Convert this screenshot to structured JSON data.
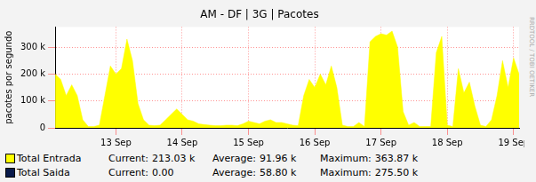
{
  "chart_data": {
    "type": "area",
    "title": "AM - DF | 3G | Pacotes",
    "y_label": "pacotes por segundo",
    "annotations": [
      "RRDTOOL / TOBI OETIKER"
    ],
    "categories": [
      null,
      null,
      null,
      null,
      null,
      null,
      null,
      null,
      null,
      null,
      null,
      "13 Sep",
      null,
      null,
      null,
      null,
      null,
      null,
      null,
      null,
      null,
      null,
      null,
      "14 Sep",
      null,
      null,
      null,
      null,
      null,
      null,
      null,
      null,
      null,
      null,
      null,
      "15 Sep",
      null,
      null,
      null,
      null,
      null,
      null,
      null,
      null,
      null,
      null,
      null,
      "16 Sep",
      null,
      null,
      null,
      null,
      null,
      null,
      null,
      null,
      null,
      null,
      null,
      "17 Sep",
      null,
      null,
      null,
      null,
      null,
      null,
      null,
      null,
      null,
      null,
      null,
      "18 Sep",
      null,
      null,
      null,
      null,
      null,
      null,
      null,
      null,
      null,
      null,
      null,
      "19 Sep",
      null
    ],
    "series": [
      {
        "name": "Total Entrada",
        "color": "#ffff00",
        "stats": [
          {
            "label": "Current:",
            "text": "213.03 k"
          },
          {
            "label": "Average:",
            "text": "91.96 k"
          },
          {
            "label": "Maximum:",
            "text": "363.87 k"
          }
        ],
        "values": [
          200000,
          180000,
          120000,
          160000,
          120000,
          30000,
          5000,
          5000,
          10000,
          120000,
          230000,
          200000,
          220000,
          330000,
          250000,
          90000,
          30000,
          10000,
          8000,
          10000,
          30000,
          50000,
          70000,
          50000,
          30000,
          25000,
          15000,
          12000,
          10000,
          8000,
          8000,
          10000,
          10000,
          8000,
          15000,
          25000,
          20000,
          15000,
          25000,
          30000,
          20000,
          20000,
          15000,
          10000,
          8000,
          120000,
          180000,
          150000,
          200000,
          160000,
          230000,
          150000,
          10000,
          5000,
          5000,
          20000,
          5000,
          320000,
          340000,
          350000,
          345000,
          360000,
          300000,
          60000,
          10000,
          20000,
          5000,
          5000,
          5000,
          280000,
          340000,
          10000,
          5000,
          220000,
          130000,
          170000,
          80000,
          10000,
          5000,
          30000,
          120000,
          250000,
          150000,
          260000,
          200000
        ]
      },
      {
        "name": "Total Saida",
        "color": "#0a1a4a",
        "stats": [
          {
            "label": "Current:",
            "text": "0.00"
          },
          {
            "label": "Average:",
            "text": "58.80 k"
          },
          {
            "label": "Maximum:",
            "text": "275.50 k"
          }
        ],
        "values": [
          null,
          null,
          null,
          null,
          null,
          null,
          null,
          null,
          null,
          null,
          null,
          null,
          null,
          null,
          null,
          null,
          null,
          null,
          null,
          null,
          null,
          null,
          null,
          null,
          null,
          null,
          null,
          null,
          null,
          null,
          null,
          null,
          null,
          null,
          null,
          null,
          null,
          null,
          null,
          null,
          null,
          null,
          null,
          null,
          null,
          null,
          null,
          null,
          null,
          null,
          null,
          null,
          null,
          null,
          null,
          null,
          null,
          null,
          null,
          null,
          null,
          null,
          null,
          null,
          null,
          null,
          null,
          null,
          null,
          null,
          null,
          null,
          null,
          null,
          null,
          null,
          null,
          null,
          null,
          null,
          null,
          null,
          null,
          null,
          null
        ]
      }
    ],
    "ylim": [
      0,
      375000
    ],
    "yticks": [
      {
        "value": 0,
        "label": "0"
      },
      {
        "value": 100000,
        "label": "100 k"
      },
      {
        "value": 200000,
        "label": "200 k"
      },
      {
        "value": 300000,
        "label": "300 k"
      }
    ],
    "grid": true
  }
}
